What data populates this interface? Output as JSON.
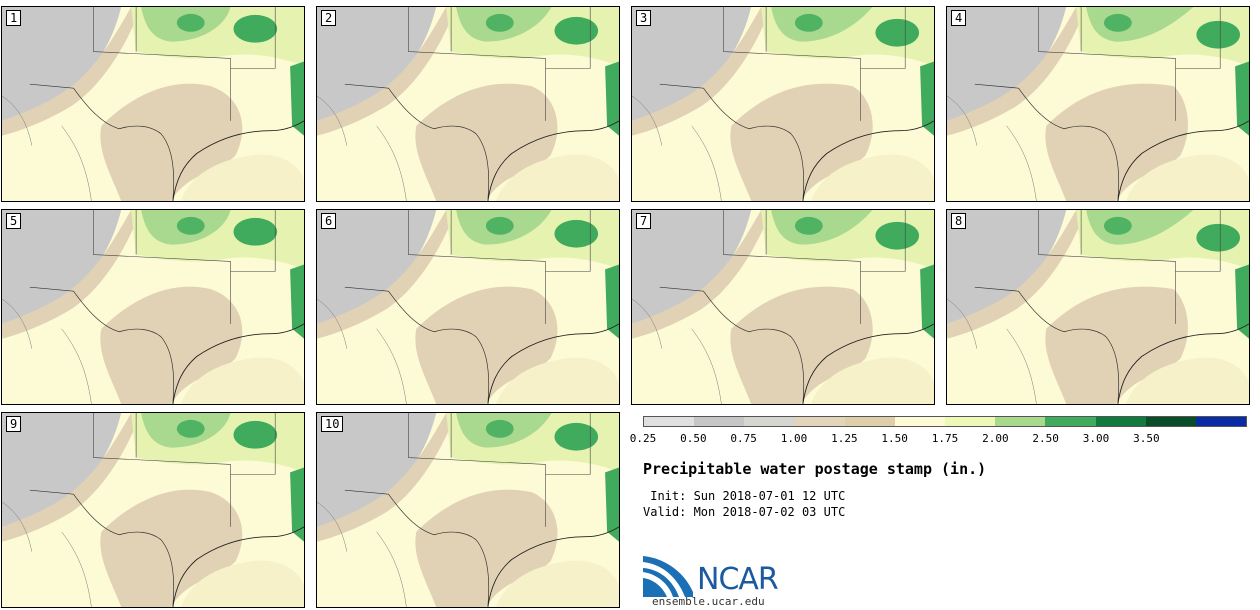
{
  "title": "Precipitable water postage stamp (in.)",
  "init_label": " Init: Sun 2018-07-01 12 UTC",
  "valid_label": "Valid: Mon 2018-07-02 03 UTC",
  "site": "ensemble.ucar.edu",
  "logo_text": "NCAR",
  "members": [
    "1",
    "2",
    "3",
    "4",
    "5",
    "6",
    "7",
    "8",
    "9",
    "10"
  ],
  "legend": {
    "ticks": [
      "0.25",
      "0.50",
      "0.75",
      "1.00",
      "1.25",
      "1.50",
      "1.75",
      "2.00",
      "2.50",
      "3.00",
      "3.50"
    ],
    "colors": [
      "#e0e0e0",
      "#c6c6c6",
      "#d6d6d0",
      "#e3d5b9",
      "#dfceaa",
      "#fdfbd6",
      "#eef8b8",
      "#a9d98f",
      "#41ab5d",
      "#117a3e",
      "#0a4d28",
      "#0a2aa6"
    ]
  },
  "map_colors": {
    "low": "#c8c8c8",
    "lowmid": "#e2d2b5",
    "mid": "#fdfbd6",
    "midhigh": "#e6f3b0",
    "high": "#a9d98f",
    "higher": "#41ab5d"
  }
}
